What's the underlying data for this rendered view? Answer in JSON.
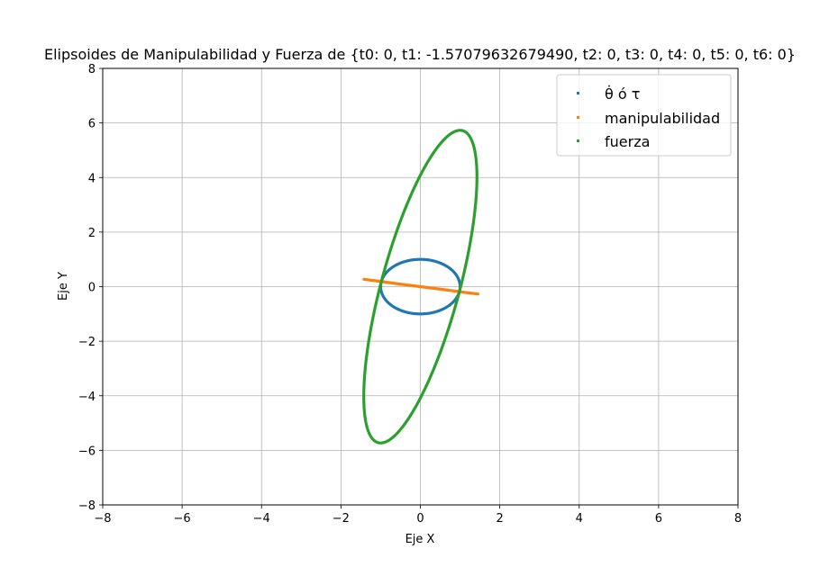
{
  "chart_data": {
    "type": "scatter",
    "title": "Elipsoides de Manipulabilidad y Fuerza de {t0: 0, t1: -1.57079632679490, t2: 0, t3: 0, t4: 0, t5: 0, t6: 0}",
    "xlabel": "Eje X",
    "ylabel": "Eje Y",
    "xlim": [
      -8,
      8
    ],
    "ylim": [
      -8,
      8
    ],
    "xticks": [
      -8,
      -6,
      -4,
      -2,
      0,
      2,
      4,
      6,
      8
    ],
    "yticks": [
      -8,
      -6,
      -4,
      -2,
      0,
      2,
      4,
      6,
      8
    ],
    "xtick_labels": [
      "−8",
      "−6",
      "−4",
      "−2",
      "0",
      "2",
      "4",
      "6",
      "8"
    ],
    "ytick_labels": [
      "−8",
      "−6",
      "−4",
      "−2",
      "0",
      "2",
      "4",
      "6",
      "8"
    ],
    "grid": true,
    "legend_position": "top-right",
    "series": [
      {
        "name": "θ̇ ó τ",
        "color": "#1f77b4",
        "shape": "ellipse",
        "center": [
          0,
          0
        ],
        "semi_axes": [
          1.0,
          1.0
        ],
        "angle_deg": 0
      },
      {
        "name": "manipulabilidad",
        "color": "#ff7f0e",
        "shape": "segment",
        "points": [
          [
            -1.42,
            0.27
          ],
          [
            -1.0,
            0.19
          ],
          [
            -0.5,
            0.09
          ],
          [
            0,
            0
          ],
          [
            0.5,
            -0.09
          ],
          [
            1.0,
            -0.19
          ],
          [
            1.45,
            -0.27
          ]
        ]
      },
      {
        "name": "fuerza",
        "color": "#2ca02c",
        "shape": "ellipse",
        "center": [
          0,
          0
        ],
        "semi_axes": [
          5.82,
          1.0
        ],
        "angle_deg": 79.8
      }
    ]
  }
}
